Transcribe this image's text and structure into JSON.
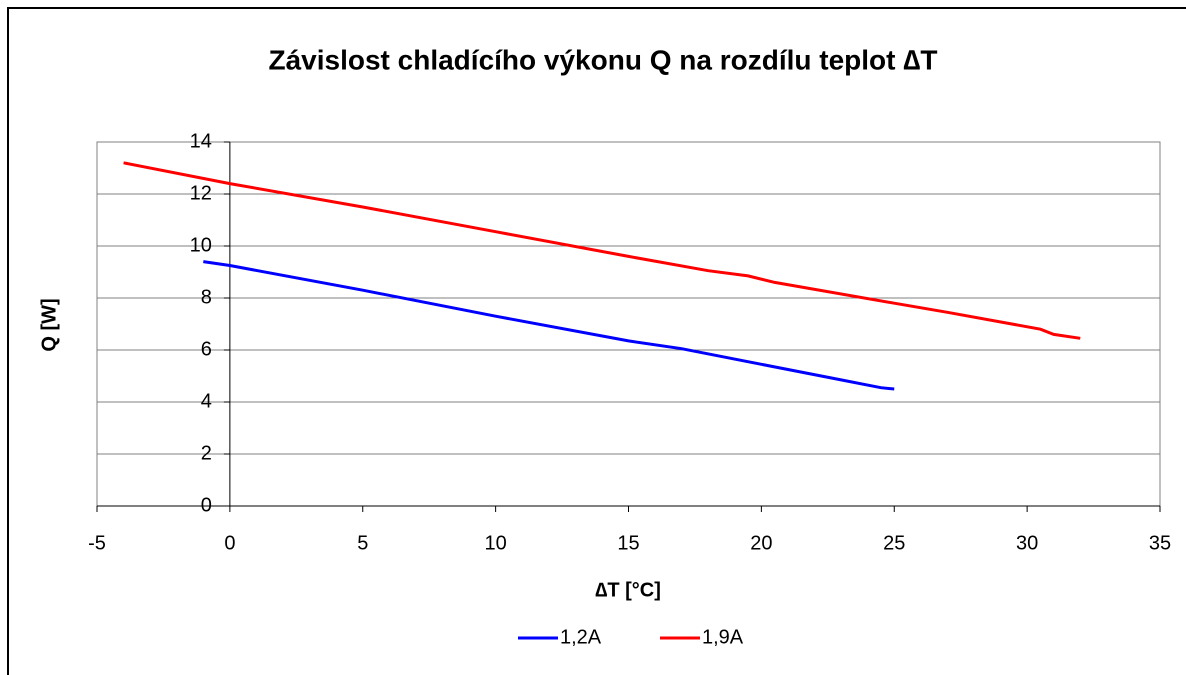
{
  "chart_data": {
    "type": "line",
    "title": "Závislost chladícího výkonu Q na rozdílu teplot ∆T",
    "x_label": "∆T [°C]",
    "y_label": "Q [W]",
    "xlim": [
      -5,
      35
    ],
    "xticks": [
      -5,
      0,
      5,
      10,
      15,
      20,
      25,
      30,
      35
    ],
    "ylim": [
      0,
      14
    ],
    "yticks": [
      0,
      2,
      4,
      6,
      8,
      10,
      12,
      14
    ],
    "grid": true,
    "legend": "bottom",
    "series": [
      {
        "name": "1,2A",
        "color": "#0000ff",
        "x": [
          -1,
          0,
          5,
          10,
          15,
          17,
          20,
          23,
          24.5,
          25
        ],
        "values": [
          9.4,
          9.25,
          8.3,
          7.3,
          6.35,
          6.05,
          5.45,
          4.85,
          4.55,
          4.5
        ]
      },
      {
        "name": "1,9A",
        "color": "#ff0000",
        "x": [
          -4,
          0,
          5,
          10,
          15,
          18,
          19.5,
          20.5,
          25,
          27,
          30.5,
          31,
          32
        ],
        "values": [
          13.2,
          12.4,
          11.5,
          10.55,
          9.6,
          9.05,
          8.85,
          8.6,
          7.8,
          7.45,
          6.8,
          6.6,
          6.45
        ]
      }
    ]
  }
}
